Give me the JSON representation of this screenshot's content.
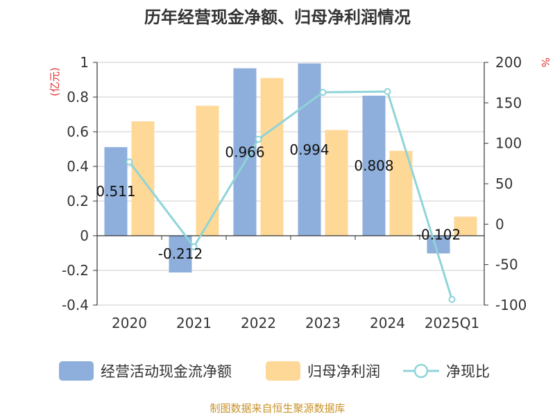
{
  "title": "历年经营现金净额、归母净利润情况",
  "source": "制图数据来自恒生聚源数据库",
  "colors": {
    "cash_flow": "#8eaedb",
    "net_profit": "#fed897",
    "ratio": "#8fd4d8",
    "grid": "#cccccc",
    "axis": "#333333",
    "unit": "#e03030",
    "source": "#c8922a"
  },
  "chart_data": {
    "type": "bar",
    "title": "历年经营现金净额、归母净利润情况",
    "categories": [
      "2020",
      "2021",
      "2022",
      "2023",
      "2024",
      "2025Q1"
    ],
    "y_left": {
      "unit": "(亿元)",
      "min": -0.4,
      "max": 1,
      "ticks": [
        "-0.4",
        "-0.2",
        "0",
        "0.2",
        "0.4",
        "0.6",
        "0.8",
        "1"
      ]
    },
    "y_right": {
      "unit": "%",
      "min": -100,
      "max": 200,
      "ticks": [
        "-100",
        "-50",
        "0",
        "50",
        "100",
        "150",
        "200"
      ]
    },
    "series": [
      {
        "name": "经营活动现金流净额",
        "type": "bar",
        "axis": "left",
        "values": [
          0.511,
          -0.212,
          0.966,
          0.994,
          0.808,
          -0.102
        ],
        "labels": [
          "0.511",
          "-0.212",
          "0.966",
          "0.994",
          "0.808",
          "-0.102"
        ]
      },
      {
        "name": "归母净利润",
        "type": "bar",
        "axis": "left",
        "values": [
          0.66,
          0.75,
          0.91,
          0.61,
          0.49,
          0.11
        ]
      },
      {
        "name": "净现比",
        "type": "line",
        "axis": "right",
        "values": [
          77,
          -28,
          105,
          163,
          164,
          -93
        ]
      }
    ],
    "legend": [
      "经营活动现金流净额",
      "归母净利润",
      "净现比"
    ],
    "legend_position": "bottom"
  }
}
